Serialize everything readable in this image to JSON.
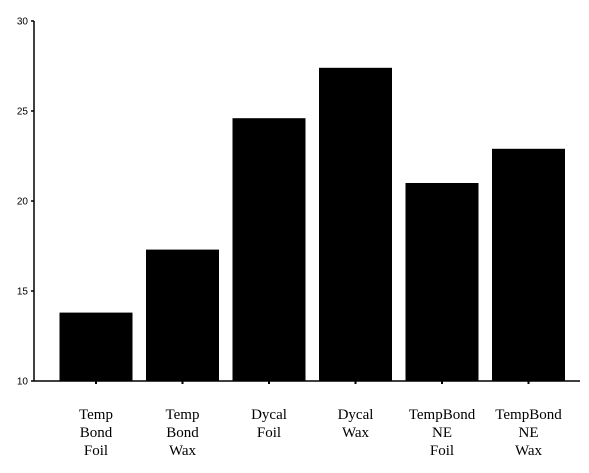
{
  "chart_data": {
    "type": "bar",
    "title": "",
    "xlabel": "",
    "ylabel": "",
    "ylim": [
      10,
      30
    ],
    "yticks": [
      10,
      15,
      20,
      25,
      30
    ],
    "categories": [
      [
        "Temp",
        "Bond",
        "Foil"
      ],
      [
        "Temp",
        "Bond",
        "Wax"
      ],
      [
        "Dycal",
        "Foil"
      ],
      [
        "Dycal",
        "Wax"
      ],
      [
        "TempBond",
        "NE",
        "Foil"
      ],
      [
        "TempBond",
        "NE",
        "Wax"
      ]
    ],
    "values": [
      13.8,
      17.3,
      24.6,
      27.4,
      21.0,
      22.9
    ],
    "bar_color": "#000000",
    "grid": false,
    "legend": "none"
  }
}
